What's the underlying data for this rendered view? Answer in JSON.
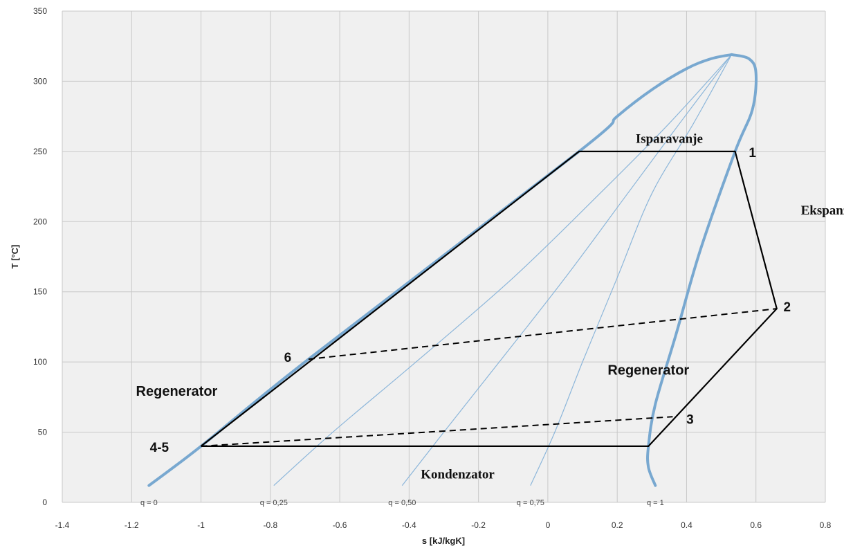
{
  "chart_data": {
    "type": "line",
    "title": "",
    "xlabel": "s  [kJ/kgK]",
    "ylabel": "T [°C]",
    "xlim": [
      -1.4,
      0.8
    ],
    "ylim": [
      0,
      350
    ],
    "x_ticks": [
      -1.4,
      -1.2,
      -1.0,
      -0.8,
      -0.6,
      -0.4,
      -0.2,
      0,
      0.2,
      0.4,
      0.6,
      0.8
    ],
    "x_tick_labels": [
      "-1.4",
      "-1.2",
      "-1",
      "-0.8",
      "-0.6",
      "-0.4",
      "-0.2",
      "0",
      "0.2",
      "0.4",
      "0.6",
      "0.8"
    ],
    "y_ticks": [
      0,
      50,
      100,
      150,
      200,
      250,
      300,
      350
    ],
    "y_tick_labels": [
      "0",
      "50",
      "100",
      "150",
      "200",
      "250",
      "300",
      "350"
    ],
    "grid": true,
    "colors": {
      "saturation": "#78a8d0",
      "quality": "#8cb6da",
      "cycle": "#000000",
      "plot_bg": "#f0f0f0",
      "grid": "#c8c8c8"
    },
    "saturation_dome": {
      "liquid_line": [
        [
          -1.15,
          12
        ],
        [
          -1.0,
          40
        ],
        [
          -0.69,
          102
        ],
        [
          0.09,
          250
        ],
        [
          0.2,
          275
        ],
        [
          0.3,
          294
        ],
        [
          0.4,
          309
        ],
        [
          0.47,
          316
        ],
        [
          0.53,
          319
        ]
      ],
      "vapor_line": [
        [
          0.53,
          319
        ],
        [
          0.58,
          316
        ],
        [
          0.6,
          306
        ],
        [
          0.59,
          280
        ],
        [
          0.54,
          250
        ],
        [
          0.44,
          180
        ],
        [
          0.37,
          120
        ],
        [
          0.31,
          70
        ],
        [
          0.29,
          40
        ],
        [
          0.29,
          25
        ],
        [
          0.31,
          12
        ]
      ]
    },
    "quality_lines": [
      {
        "label": "q = 0,25",
        "points": [
          [
            -0.79,
            12
          ],
          [
            -0.62,
            50
          ],
          [
            -0.38,
            100
          ],
          [
            -0.1,
            160
          ],
          [
            0.15,
            220
          ],
          [
            0.35,
            270
          ],
          [
            0.53,
            319
          ]
        ]
      },
      {
        "label": "q = 0,50",
        "points": [
          [
            -0.42,
            12
          ],
          [
            -0.3,
            50
          ],
          [
            -0.14,
            100
          ],
          [
            0.05,
            160
          ],
          [
            0.23,
            220
          ],
          [
            0.38,
            270
          ],
          [
            0.53,
            319
          ]
        ]
      },
      {
        "label": "q = 0,75",
        "points": [
          [
            -0.05,
            12
          ],
          [
            0.02,
            50
          ],
          [
            0.1,
            100
          ],
          [
            0.2,
            160
          ],
          [
            0.3,
            220
          ],
          [
            0.42,
            270
          ],
          [
            0.53,
            319
          ]
        ]
      }
    ],
    "quality_axis_labels": [
      {
        "text": "q = 0",
        "x": -1.15
      },
      {
        "text": "q = 0,25",
        "x": -0.79
      },
      {
        "text": "q = 0,50",
        "x": -0.42
      },
      {
        "text": "q = 0,75",
        "x": -0.05
      },
      {
        "text": "q = 1",
        "x": 0.31
      }
    ],
    "cycle": {
      "solid": [
        [
          -1.0,
          40
        ],
        [
          0.09,
          250
        ],
        [
          0.54,
          250
        ],
        [
          0.66,
          138
        ],
        [
          0.29,
          40
        ],
        [
          -1.0,
          40
        ]
      ],
      "dashed": [
        [
          [
            -0.69,
            102
          ],
          [
            0.66,
            138
          ]
        ],
        [
          [
            -1.0,
            40
          ],
          [
            0.36,
            61
          ]
        ]
      ]
    },
    "point_labels": [
      {
        "text": "1",
        "x": 0.59,
        "y": 246
      },
      {
        "text": "2",
        "x": 0.69,
        "y": 136
      },
      {
        "text": "3",
        "x": 0.41,
        "y": 56
      },
      {
        "text": "4-5",
        "x": -1.12,
        "y": 36
      },
      {
        "text": "6",
        "x": -0.75,
        "y": 100
      }
    ],
    "process_labels": [
      {
        "text": "Isparavanje",
        "x": 0.35,
        "y": 256
      },
      {
        "text": "Ekspanzija",
        "x": 0.82,
        "y": 205
      },
      {
        "text": "Kondenzator",
        "x": -0.26,
        "y": 17
      }
    ],
    "region_labels": [
      {
        "text": "Regenerator",
        "x": -1.07,
        "y": 76
      },
      {
        "text": "Regenerator",
        "x": 0.29,
        "y": 91
      }
    ]
  }
}
